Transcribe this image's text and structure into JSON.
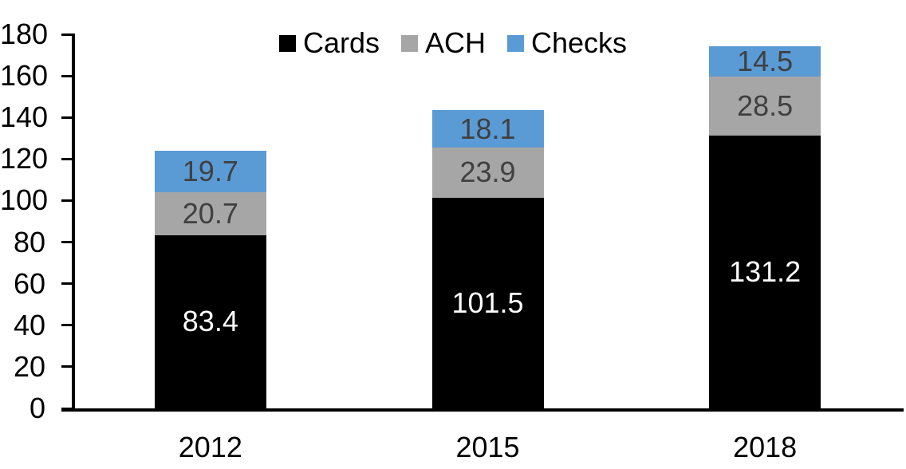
{
  "chart_data": {
    "type": "bar",
    "stacked": true,
    "title": "",
    "xlabel": "",
    "ylabel": "",
    "categories": [
      "2012",
      "2015",
      "2018"
    ],
    "series": [
      {
        "name": "Cards",
        "color": "#000000",
        "label_color": "#FFFFFF",
        "values": [
          83.4,
          101.5,
          131.2
        ]
      },
      {
        "name": "ACH",
        "color": "#A6A6A6",
        "label_color": "#404040",
        "values": [
          20.7,
          23.9,
          28.5
        ]
      },
      {
        "name": "Checks",
        "color": "#5B9BD5",
        "label_color": "#404040",
        "values": [
          19.7,
          18.1,
          14.5
        ]
      }
    ],
    "data_labels_visible": true,
    "ylim": [
      0,
      180
    ],
    "yticks": [
      0,
      20,
      40,
      60,
      80,
      100,
      120,
      140,
      160,
      180
    ],
    "grid": false,
    "legend_position": "top-center",
    "axis_color": "#000000",
    "text_color": "#000000",
    "background_color": "#FFFFFF"
  }
}
